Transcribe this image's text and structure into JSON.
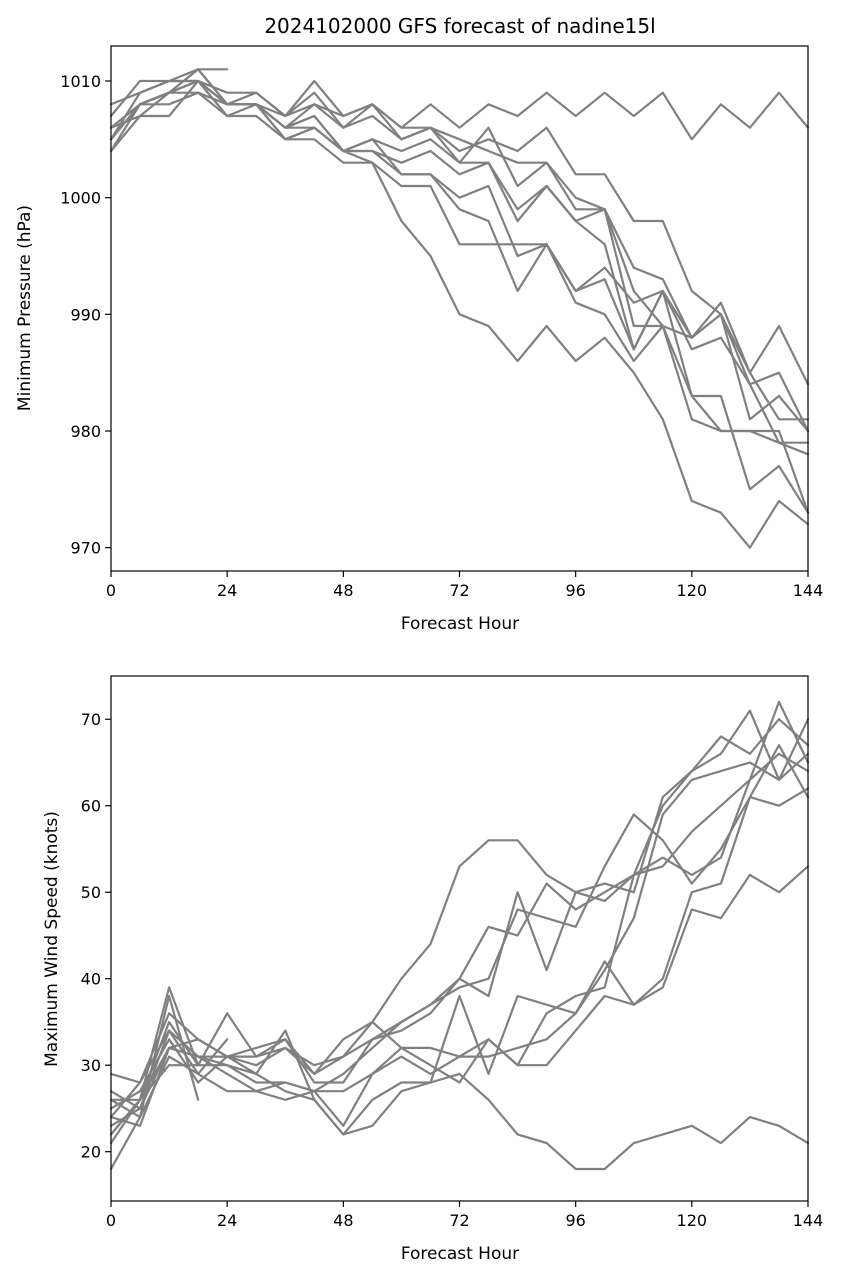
{
  "chart_data": [
    {
      "type": "line",
      "title": "2024102000 GFS forecast of nadine15l",
      "xlabel": "Forecast Hour",
      "ylabel": "Minimum Pressure (hPa)",
      "xlim": [
        0,
        144
      ],
      "ylim": [
        968,
        1013
      ],
      "xticks": [
        0,
        24,
        48,
        72,
        96,
        120,
        144
      ],
      "yticks": [
        970,
        980,
        990,
        1000,
        1010
      ],
      "color": "#808080",
      "series": [
        {
          "x": [
            0,
            6,
            12,
            18,
            24
          ],
          "y": [
            1004,
            1008,
            1009,
            1011,
            1011
          ]
        },
        {
          "x": [
            0,
            6,
            12,
            18,
            24,
            30,
            36,
            42,
            48,
            54,
            60,
            66,
            72,
            78,
            84,
            90,
            96,
            102,
            108,
            114,
            120,
            126,
            132,
            138,
            144
          ],
          "y": [
            1008,
            1009,
            1010,
            1010,
            1009,
            1009,
            1007,
            1008,
            1007,
            1008,
            1006,
            1008,
            1006,
            1008,
            1007,
            1009,
            1007,
            1009,
            1007,
            1009,
            1005,
            1008,
            1006,
            1009,
            1006
          ]
        },
        {
          "x": [
            0,
            6,
            12,
            18,
            24,
            30,
            36,
            42,
            48,
            54,
            60,
            66,
            72,
            78,
            84,
            90,
            96,
            102,
            108,
            114,
            120,
            126,
            132,
            138,
            144
          ],
          "y": [
            1007,
            1010,
            1010,
            1011,
            1008,
            1009,
            1007,
            1010,
            1007,
            1008,
            1005,
            1006,
            1005,
            1004,
            1003,
            1003,
            1000,
            999,
            992,
            989,
            988,
            990,
            984,
            985,
            980
          ]
        },
        {
          "x": [
            0,
            6,
            12,
            18,
            24,
            30,
            36,
            42,
            48,
            54,
            60,
            66,
            72,
            78,
            84,
            90,
            96,
            102,
            108,
            114,
            120,
            126,
            132,
            138,
            144
          ],
          "y": [
            1006,
            1008,
            1009,
            1011,
            1008,
            1008,
            1007,
            1009,
            1006,
            1008,
            1006,
            1006,
            1004,
            1005,
            1004,
            1006,
            1002,
            1002,
            998,
            998,
            992,
            990,
            985,
            989,
            984
          ]
        },
        {
          "x": [
            0,
            6,
            12,
            18,
            24,
            30,
            36,
            42,
            48,
            54,
            60,
            66,
            72,
            78,
            84,
            90,
            96,
            102,
            108,
            114,
            120,
            126,
            132,
            138,
            144
          ],
          "y": [
            1005,
            1009,
            1010,
            1010,
            1008,
            1008,
            1006,
            1008,
            1006,
            1007,
            1005,
            1006,
            1003,
            1006,
            1001,
            1003,
            999,
            999,
            994,
            993,
            988,
            991,
            985,
            981,
            981
          ]
        },
        {
          "x": [
            0,
            6,
            12,
            18,
            24,
            30,
            36,
            42,
            48,
            54,
            60,
            66,
            72,
            78,
            84,
            90,
            96,
            102,
            108,
            114,
            120,
            126,
            132,
            138,
            144
          ],
          "y": [
            1005,
            1008,
            1009,
            1010,
            1008,
            1008,
            1006,
            1007,
            1004,
            1005,
            1004,
            1005,
            1003,
            1003,
            999,
            1001,
            998,
            996,
            987,
            992,
            988,
            990,
            981,
            983,
            980
          ]
        },
        {
          "x": [
            0,
            6,
            12,
            18,
            24,
            30,
            36,
            42,
            48,
            54,
            60,
            66,
            72,
            78,
            84,
            90,
            96,
            102,
            108,
            114,
            120,
            126,
            132,
            138,
            144
          ],
          "y": [
            1005,
            1008,
            1008,
            1009,
            1008,
            1008,
            1006,
            1007,
            1004,
            1004,
            1003,
            1004,
            1002,
            1003,
            998,
            1001,
            998,
            999,
            989,
            989,
            983,
            983,
            975,
            977,
            973
          ]
        },
        {
          "x": [
            0,
            6,
            12,
            18,
            24,
            30,
            36,
            42,
            48,
            54,
            60,
            66,
            72,
            78,
            84,
            90,
            96,
            102,
            108,
            114,
            120,
            126,
            132,
            138,
            144
          ],
          "y": [
            1006,
            1008,
            1009,
            1010,
            1008,
            1008,
            1006,
            1006,
            1004,
            1004,
            1002,
            1002,
            999,
            998,
            992,
            996,
            992,
            994,
            991,
            992,
            987,
            988,
            984,
            979,
            979
          ]
        },
        {
          "x": [
            0,
            6,
            12,
            18,
            24,
            30,
            36,
            42,
            48,
            54,
            60,
            66,
            72,
            78,
            84,
            90,
            96,
            102,
            108,
            114,
            120,
            126,
            132,
            138,
            144
          ],
          "y": [
            1006,
            1007,
            1009,
            1009,
            1007,
            1008,
            1005,
            1006,
            1004,
            1003,
            1001,
            1001,
            996,
            996,
            996,
            996,
            991,
            990,
            986,
            989,
            981,
            980,
            980,
            979,
            978
          ]
        },
        {
          "x": [
            0,
            6,
            12,
            18,
            24,
            30,
            36,
            42,
            48,
            54,
            60,
            66,
            72,
            78,
            84,
            90,
            96,
            102,
            108,
            114,
            120,
            126,
            132,
            138,
            144
          ],
          "y": [
            1004,
            1007,
            1007,
            1010,
            1007,
            1007,
            1005,
            1005,
            1003,
            1003,
            998,
            995,
            990,
            989,
            986,
            989,
            986,
            988,
            985,
            981,
            974,
            973,
            970,
            974,
            972
          ]
        },
        {
          "x": [
            0,
            6,
            12,
            18,
            24,
            30,
            36,
            42,
            48,
            54,
            60,
            66,
            72,
            78,
            84,
            90,
            96,
            102,
            108,
            114,
            120,
            126,
            132,
            138,
            144
          ],
          "y": [
            1005,
            1008,
            1009,
            1010,
            1008,
            1008,
            1005,
            1006,
            1004,
            1005,
            1002,
            1002,
            1000,
            1001,
            995,
            996,
            992,
            993,
            987,
            992,
            983,
            980,
            980,
            980,
            973
          ]
        }
      ]
    },
    {
      "type": "line",
      "title": "",
      "xlabel": "Forecast Hour",
      "ylabel": "Maximum Wind Speed (knots)",
      "xlim": [
        0,
        144
      ],
      "ylim": [
        14.3,
        75
      ],
      "xticks": [
        0,
        24,
        48,
        72,
        96,
        120,
        144
      ],
      "yticks": [
        20,
        30,
        40,
        50,
        60,
        70
      ],
      "color": "#808080",
      "series": [
        {
          "x": [
            0,
            6,
            12,
            18,
            24
          ],
          "y": [
            29,
            28,
            34,
            29,
            33
          ]
        },
        {
          "x": [
            0,
            6,
            12,
            18
          ],
          "y": [
            18,
            24,
            38,
            26
          ]
        },
        {
          "x": [
            0,
            6,
            12,
            18
          ],
          "y": [
            21,
            26,
            35,
            30
          ]
        },
        {
          "x": [
            0,
            6,
            12,
            18,
            24,
            30,
            36,
            42,
            48,
            54,
            60,
            66,
            72,
            78,
            84,
            90,
            96,
            102,
            108,
            114,
            120,
            126,
            132,
            138,
            144
          ],
          "y": [
            22,
            26,
            39,
            30,
            36,
            31,
            33,
            28,
            28,
            33,
            34,
            36,
            40,
            38,
            50,
            41,
            50,
            51,
            50,
            61,
            64,
            66,
            71,
            63,
            70
          ]
        },
        {
          "x": [
            0,
            6,
            12,
            18,
            24,
            30,
            36,
            42,
            48,
            54,
            60,
            66,
            72,
            78,
            84,
            90,
            96,
            102,
            108,
            114,
            120,
            126,
            132,
            138,
            144
          ],
          "y": [
            25,
            27,
            33,
            28,
            31,
            29,
            34,
            26,
            22,
            23,
            27,
            28,
            29,
            26,
            22,
            21,
            18,
            18,
            21,
            22,
            23,
            21,
            24,
            23,
            21
          ]
        },
        {
          "x": [
            0,
            6,
            12,
            18,
            24,
            30,
            36,
            42,
            48,
            54,
            60,
            66,
            72,
            78,
            84,
            90,
            96,
            102,
            108,
            114,
            120,
            126,
            132,
            138,
            144
          ],
          "y": [
            24,
            23,
            32,
            31,
            29,
            27,
            26,
            27,
            23,
            29,
            32,
            30,
            28,
            33,
            30,
            30,
            34,
            38,
            37,
            40,
            50,
            51,
            61,
            60,
            62
          ]
        },
        {
          "x": [
            0,
            6,
            12,
            18,
            24,
            30,
            36,
            42,
            48,
            54,
            60,
            66,
            72,
            78,
            84,
            90,
            96,
            102,
            108,
            114,
            120,
            126,
            132,
            138,
            144
          ],
          "y": [
            26,
            24,
            31,
            29,
            27,
            27,
            28,
            27,
            27,
            29,
            31,
            29,
            31,
            31,
            32,
            33,
            36,
            41,
            47,
            59,
            63,
            64,
            65,
            63,
            66
          ]
        },
        {
          "x": [
            0,
            6,
            12,
            18,
            24,
            30,
            36,
            42,
            48,
            54,
            60,
            66,
            72,
            78,
            84,
            90,
            96,
            102,
            108,
            114,
            120,
            126,
            132,
            138,
            144
          ],
          "y": [
            23,
            25,
            32,
            33,
            31,
            32,
            33,
            29,
            33,
            35,
            40,
            44,
            53,
            56,
            56,
            52,
            50,
            49,
            52,
            53,
            57,
            60,
            63,
            66,
            64
          ]
        },
        {
          "x": [
            0,
            6,
            12,
            18,
            24,
            30,
            36,
            42,
            48,
            54,
            60,
            66,
            72,
            78,
            84,
            90,
            96,
            102,
            108,
            114,
            120,
            126,
            132,
            138,
            144
          ],
          "y": [
            22,
            26,
            30,
            30,
            30,
            28,
            28,
            27,
            29,
            32,
            35,
            37,
            40,
            46,
            45,
            51,
            48,
            50,
            52,
            54,
            52,
            54,
            63,
            72,
            65
          ]
        },
        {
          "x": [
            0,
            6,
            12,
            18,
            24,
            30,
            36,
            42,
            48,
            54,
            60,
            66,
            72,
            78,
            84,
            90,
            96,
            102,
            108,
            114,
            120,
            126,
            132,
            138,
            144
          ],
          "y": [
            27,
            25,
            34,
            31,
            31,
            30,
            32,
            30,
            31,
            33,
            35,
            37,
            39,
            40,
            48,
            47,
            46,
            53,
            59,
            56,
            51,
            55,
            61,
            67,
            61
          ]
        },
        {
          "x": [
            0,
            6,
            12,
            18,
            24,
            30,
            36,
            42,
            48,
            54,
            60,
            66,
            72,
            78,
            84,
            90,
            96,
            102,
            108,
            114,
            120,
            126,
            132,
            138,
            144
          ],
          "y": [
            24,
            28,
            36,
            33,
            31,
            31,
            32,
            29,
            31,
            35,
            32,
            32,
            31,
            33,
            30,
            36,
            38,
            39,
            52,
            60,
            64,
            68,
            66,
            70,
            67
          ]
        },
        {
          "x": [
            0,
            6,
            12,
            18,
            24,
            30,
            36,
            42,
            48,
            54,
            60,
            66,
            72,
            78,
            84,
            90,
            96,
            102,
            108,
            114,
            120,
            126,
            132,
            138,
            144
          ],
          "y": [
            26,
            26,
            32,
            31,
            30,
            29,
            27,
            26,
            22,
            26,
            28,
            28,
            38,
            29,
            38,
            37,
            36,
            42,
            37,
            39,
            48,
            47,
            52,
            50,
            53
          ]
        }
      ]
    }
  ]
}
